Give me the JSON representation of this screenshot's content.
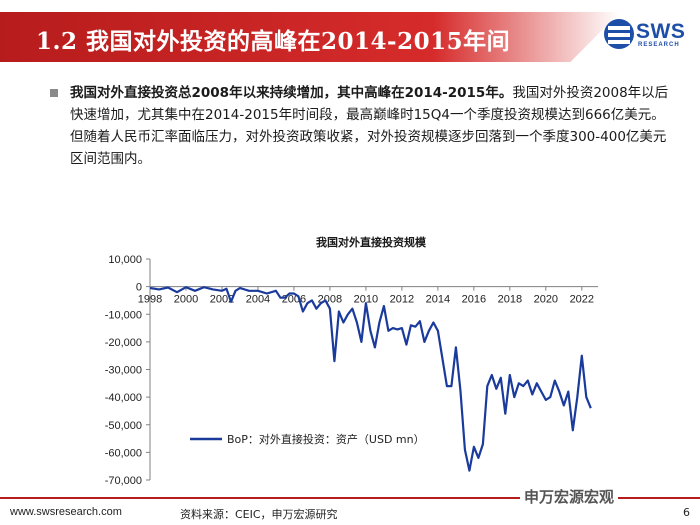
{
  "header": {
    "title": "1.2 我国对外投资的高峰在2014-2015年间",
    "logo_text": "SWS",
    "logo_sub": "RESEARCH"
  },
  "summary": {
    "bold": "我国对外直接投资总2008年以来持续增加，其中高峰在2014-2015年。",
    "text": "我国对外投资2008年以后快速增加，尤其集中在2014-2015年时间段，最高巅峰时15Q4一个季度投资规模达到666亿美元。但随着人民币汇率面临压力，对外投资政策收紧，对外投资规模逐步回落到一个季度300-400亿美元区间范围内。"
  },
  "chart_data": {
    "type": "line",
    "title": "我国对外直接投资规模",
    "xlabel": "",
    "ylabel": "",
    "x_ticks": [
      "1998",
      "2000",
      "2002",
      "2004",
      "2006",
      "2008",
      "2010",
      "2012",
      "2014",
      "2016",
      "2018",
      "2020",
      "2022"
    ],
    "y_ticks": [
      "10,000",
      "0",
      "-10,000",
      "-20,000",
      "-30,000",
      "-40,000",
      "-50,000",
      "-60,000",
      "-70,000"
    ],
    "xlim": [
      1998,
      2022.9
    ],
    "ylim": [
      -70000,
      10000
    ],
    "grid": false,
    "legend": "bottom-left",
    "series": [
      {
        "name": "BoP：对外直接投资：资产（USD mn）",
        "color": "#1a3a9c",
        "x": [
          1998.0,
          1998.5,
          1999.0,
          1999.5,
          2000.0,
          2000.5,
          2001.0,
          2001.5,
          2002.0,
          2002.25,
          2002.5,
          2002.75,
          2003.0,
          2003.5,
          2004.0,
          2004.5,
          2005.0,
          2005.25,
          2005.5,
          2005.75,
          2006.0,
          2006.25,
          2006.5,
          2006.75,
          2007.0,
          2007.25,
          2007.5,
          2007.75,
          2008.0,
          2008.25,
          2008.5,
          2008.75,
          2009.0,
          2009.25,
          2009.5,
          2009.75,
          2010.0,
          2010.25,
          2010.5,
          2010.75,
          2011.0,
          2011.25,
          2011.5,
          2011.75,
          2012.0,
          2012.25,
          2012.5,
          2012.75,
          2013.0,
          2013.25,
          2013.5,
          2013.75,
          2014.0,
          2014.25,
          2014.5,
          2014.75,
          2015.0,
          2015.25,
          2015.5,
          2015.75,
          2016.0,
          2016.25,
          2016.5,
          2016.75,
          2017.0,
          2017.25,
          2017.5,
          2017.75,
          2018.0,
          2018.25,
          2018.5,
          2018.75,
          2019.0,
          2019.25,
          2019.5,
          2019.75,
          2020.0,
          2020.25,
          2020.5,
          2020.75,
          2021.0,
          2021.25,
          2021.5,
          2021.75,
          2022.0,
          2022.25,
          2022.5
        ],
        "values": [
          -500,
          -1000,
          -300,
          -2000,
          -200,
          -1500,
          -200,
          -1000,
          -1500,
          -800,
          -5500,
          -1500,
          -500,
          -1500,
          -1500,
          -2500,
          -1500,
          -4000,
          -4000,
          -2500,
          -2500,
          -3500,
          -9000,
          -6000,
          -5000,
          -8000,
          -6000,
          -5000,
          -8000,
          -27000,
          -9000,
          -13000,
          -10000,
          -8000,
          -13000,
          -20000,
          -6000,
          -16000,
          -22000,
          -13000,
          -7000,
          -16000,
          -15000,
          -15500,
          -15000,
          -21000,
          -14000,
          -14500,
          -12500,
          -20000,
          -16000,
          -13000,
          -16000,
          -26000,
          -36000,
          -36000,
          -22000,
          -37500,
          -59000,
          -66600,
          -58000,
          -62000,
          -57000,
          -36000,
          -32000,
          -37000,
          -33000,
          -46000,
          -32000,
          -40000,
          -35000,
          -36000,
          -34000,
          -39000,
          -35000,
          -38000,
          -41000,
          -40000,
          -34000,
          -38000,
          -43000,
          -38000,
          -52000,
          -40000,
          -25000,
          -40000,
          -44000
        ]
      }
    ]
  },
  "footer": {
    "url": "www.swsresearch.com",
    "source": "资料来源：CEIC，申万宏源研究",
    "brand": "申万宏源宏观",
    "page": "6"
  }
}
